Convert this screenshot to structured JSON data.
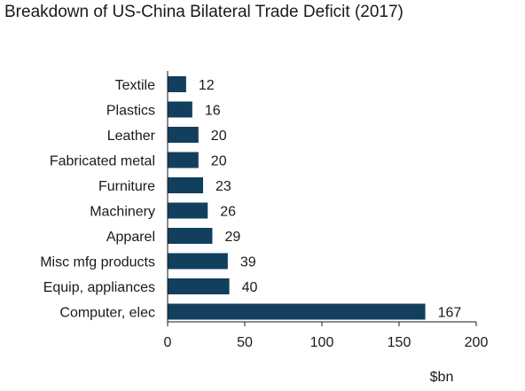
{
  "chart_data": {
    "type": "bar",
    "orientation": "horizontal",
    "title": "Breakdown of US-China Bilateral Trade Deficit (2017)",
    "xlabel": "$bn",
    "ylabel": "",
    "xlim": [
      0,
      200
    ],
    "xticks": [
      0,
      50,
      100,
      150,
      200
    ],
    "grid": false,
    "bar_color": "#123f5e",
    "categories": [
      "Textile",
      "Plastics",
      "Leather",
      "Fabricated metal",
      "Furniture",
      "Machinery",
      "Apparel",
      "Misc mfg products",
      "Equip, appliances",
      "Computer, elec"
    ],
    "values": [
      12,
      16,
      20,
      20,
      23,
      26,
      29,
      39,
      40,
      167
    ]
  }
}
